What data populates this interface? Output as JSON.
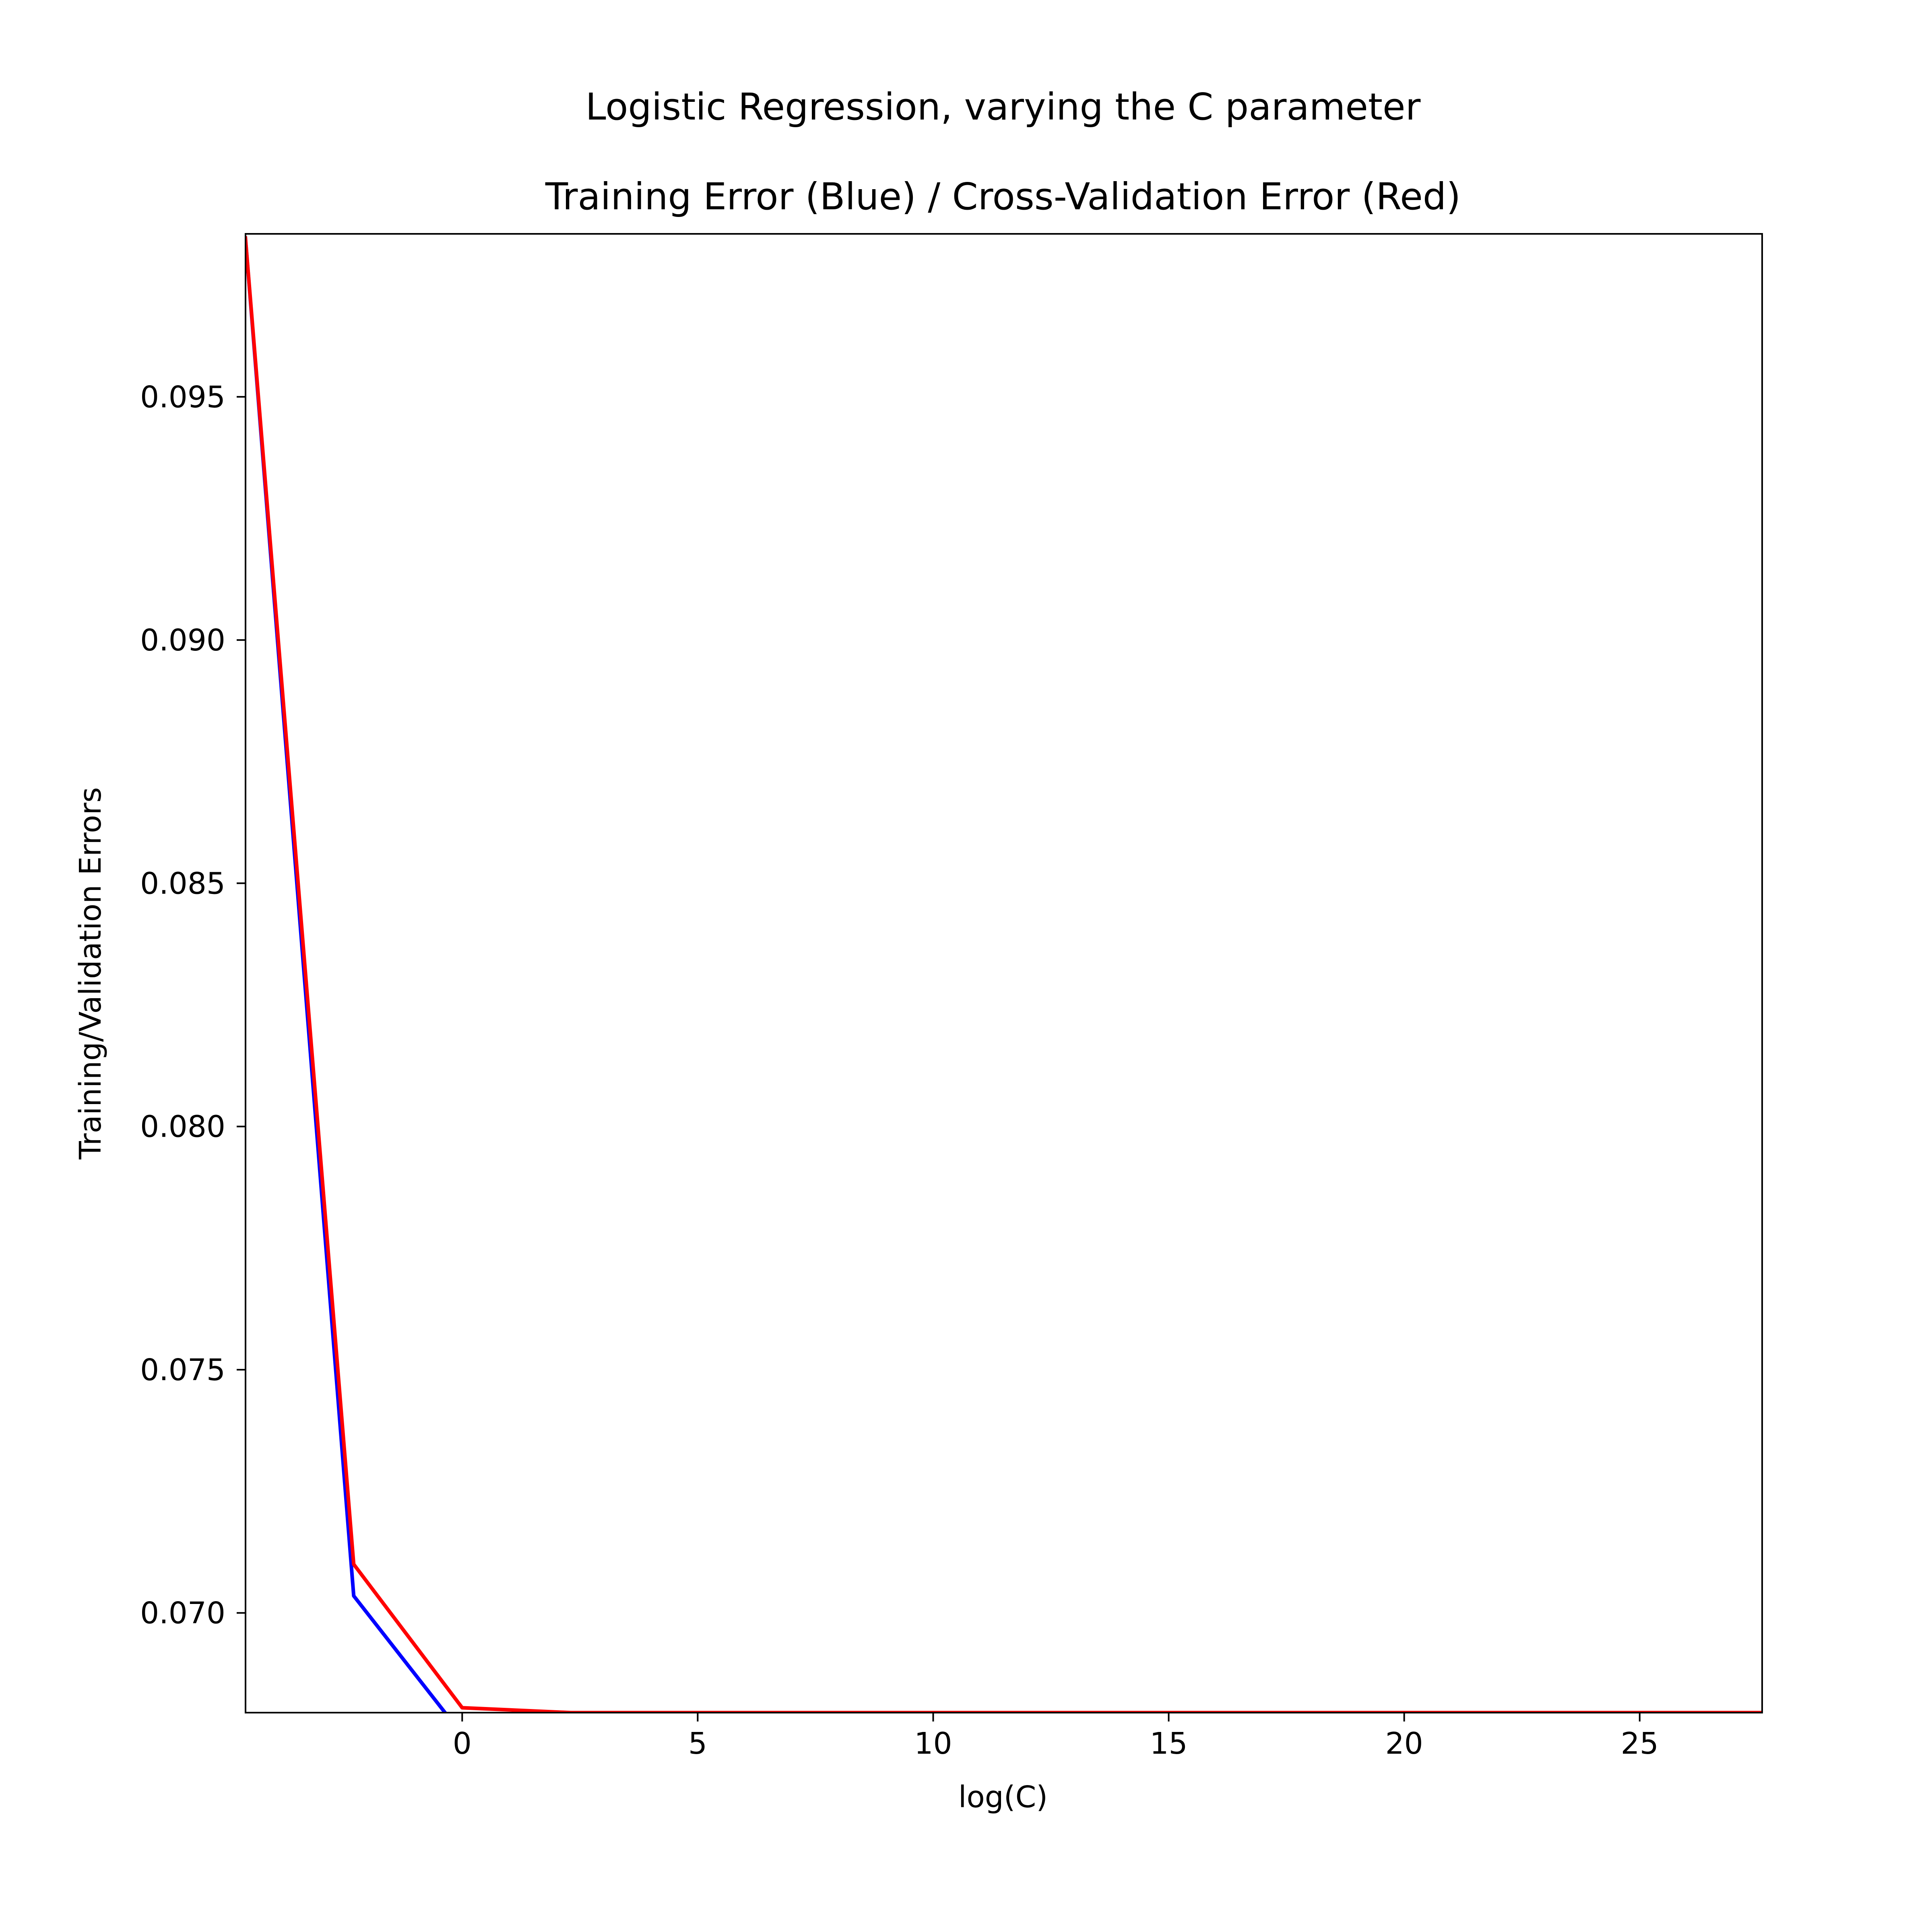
{
  "chart_data": {
    "type": "line",
    "suptitle": "Logistic Regression, varying the C parameter",
    "title": "Training Error (Blue) / Cross-Validation Error (Red)",
    "xlabel": "log(C)",
    "ylabel": "Training/Validation Errors",
    "xlim": [
      -4.6,
      27.6
    ],
    "ylim": [
      0.06795,
      0.09835
    ],
    "xticks": [
      0,
      5,
      10,
      15,
      20,
      25
    ],
    "yticks": [
      0.07,
      0.075,
      0.08,
      0.085,
      0.09,
      0.095
    ],
    "xtick_labels": [
      "0",
      "5",
      "10",
      "15",
      "20",
      "25"
    ],
    "ytick_labels": [
      "0.070",
      "0.075",
      "0.080",
      "0.085",
      "0.090",
      "0.095"
    ],
    "grid": false,
    "legend": "none",
    "series": [
      {
        "color": "#0000ff",
        "x": [
          -4.605,
          -2.303,
          0.0,
          2.303,
          4.605,
          6.908,
          9.21,
          11.513,
          13.816,
          16.118,
          18.421,
          20.723,
          23.026,
          25.328,
          27.631
        ],
        "y": [
          0.0983,
          0.07035,
          0.0675,
          0.0675,
          0.0675,
          0.0675,
          0.0675,
          0.0675,
          0.0675,
          0.0675,
          0.0675,
          0.0675,
          0.0675,
          0.0675,
          0.0675
        ]
      },
      {
        "color": "#ff0000",
        "x": [
          -4.605,
          -2.303,
          0.0,
          2.303,
          4.605,
          6.908,
          9.21,
          11.513,
          13.816,
          16.118,
          18.421,
          20.723,
          23.026,
          25.328,
          27.631
        ],
        "y": [
          0.0983,
          0.071,
          0.06805,
          0.06795,
          0.06795,
          0.06795,
          0.06795,
          0.06795,
          0.06795,
          0.06795,
          0.06795,
          0.06795,
          0.06795,
          0.06795,
          0.06795
        ]
      }
    ]
  }
}
